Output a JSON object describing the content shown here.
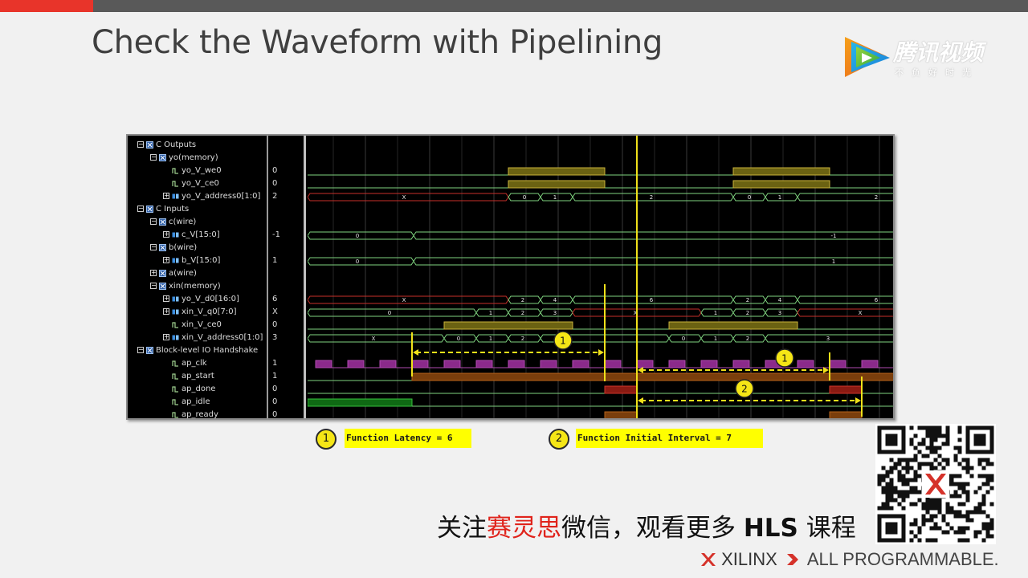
{
  "slide": {
    "title": "Check the Waveform with Pipelining",
    "logo_text": "腾讯视频",
    "logo_subtext": "不负好时光"
  },
  "waveform": {
    "rows": [
      {
        "name": "C Outputs",
        "value": "",
        "indent": 0,
        "tree": "minus",
        "icon": "group-icon"
      },
      {
        "name": "yo(memory)",
        "value": "",
        "indent": 1,
        "tree": "minus",
        "icon": "group-icon"
      },
      {
        "name": "yo_V_we0",
        "value": "0",
        "indent": 2,
        "tree": "",
        "icon": "bit-icon"
      },
      {
        "name": "yo_V_ce0",
        "value": "0",
        "indent": 2,
        "tree": "",
        "icon": "bit-icon"
      },
      {
        "name": "yo_V_address0[1:0]",
        "value": "2",
        "indent": 2,
        "tree": "plus",
        "icon": "bus-icon"
      },
      {
        "name": "C Inputs",
        "value": "",
        "indent": 0,
        "tree": "minus",
        "icon": "group-icon"
      },
      {
        "name": "c(wire)",
        "value": "",
        "indent": 1,
        "tree": "minus",
        "icon": "group-icon"
      },
      {
        "name": "c_V[15:0]",
        "value": "-1",
        "indent": 2,
        "tree": "plus",
        "icon": "bus-icon"
      },
      {
        "name": "b(wire)",
        "value": "",
        "indent": 1,
        "tree": "minus",
        "icon": "group-icon"
      },
      {
        "name": "b_V[15:0]",
        "value": "1",
        "indent": 2,
        "tree": "plus",
        "icon": "bus-icon"
      },
      {
        "name": "a(wire)",
        "value": "",
        "indent": 1,
        "tree": "plus",
        "icon": "group-icon"
      },
      {
        "name": "xin(memory)",
        "value": "",
        "indent": 1,
        "tree": "minus",
        "icon": "group-icon"
      },
      {
        "name": "yo_V_d0[16:0]",
        "value": "6",
        "indent": 2,
        "tree": "plus",
        "icon": "bus-icon"
      },
      {
        "name": "xin_V_q0[7:0]",
        "value": "X",
        "indent": 2,
        "tree": "plus",
        "icon": "bus-icon"
      },
      {
        "name": "xin_V_ce0",
        "value": "0",
        "indent": 2,
        "tree": "",
        "icon": "bit-icon"
      },
      {
        "name": "xin_V_address0[1:0]",
        "value": "3",
        "indent": 2,
        "tree": "plus",
        "icon": "bus-icon"
      },
      {
        "name": "Block-level IO Handshake",
        "value": "",
        "indent": 0,
        "tree": "minus",
        "icon": "group-icon"
      },
      {
        "name": "ap_clk",
        "value": "1",
        "indent": 2,
        "tree": "",
        "icon": "bit-icon"
      },
      {
        "name": "ap_start",
        "value": "1",
        "indent": 2,
        "tree": "",
        "icon": "bit-icon"
      },
      {
        "name": "ap_done",
        "value": "0",
        "indent": 2,
        "tree": "",
        "icon": "bit-icon"
      },
      {
        "name": "ap_idle",
        "value": "0",
        "indent": 2,
        "tree": "",
        "icon": "bit-icon"
      },
      {
        "name": "ap_ready",
        "value": "0",
        "indent": 2,
        "tree": "",
        "icon": "bit-icon"
      }
    ],
    "bus_labels": {
      "yo_V_address0": [
        "X",
        "0",
        "1",
        "2",
        "0",
        "1",
        "2"
      ],
      "c_V": [
        "0",
        "-1"
      ],
      "b_V": [
        "0",
        "1"
      ],
      "yo_V_d0": [
        "X",
        "2",
        "4",
        "6",
        "2",
        "4",
        "6"
      ],
      "xin_V_q0": [
        "0",
        "1",
        "2",
        "3",
        "X",
        "1",
        "2",
        "3",
        "X"
      ],
      "xin_V_address0": [
        "X",
        "0",
        "1",
        "2",
        "0",
        "1",
        "2",
        "3"
      ]
    },
    "markers": [
      "1",
      "1",
      "2"
    ]
  },
  "notes": [
    {
      "num": "1",
      "text": "Function Latency = 6"
    },
    {
      "num": "2",
      "text": "Function Initial Interval = 7"
    }
  ],
  "cta": {
    "part1": "关注",
    "part2_red": "赛灵思",
    "part3": "微信，观看更多 ",
    "part4_bold": "HLS",
    "part5": " 课程"
  },
  "footer": {
    "brand": "XILINX",
    "tagline": "ALL PROGRAMMABLE."
  },
  "colors": {
    "accent_red": "#e8342a",
    "top_bar": "#595959",
    "highlight_yellow": "#ffff00",
    "wave_green": "#7fd37f",
    "wave_red": "#c8302a",
    "wave_olive": "#6b6212",
    "clk_purple": "#8b2a8b"
  }
}
